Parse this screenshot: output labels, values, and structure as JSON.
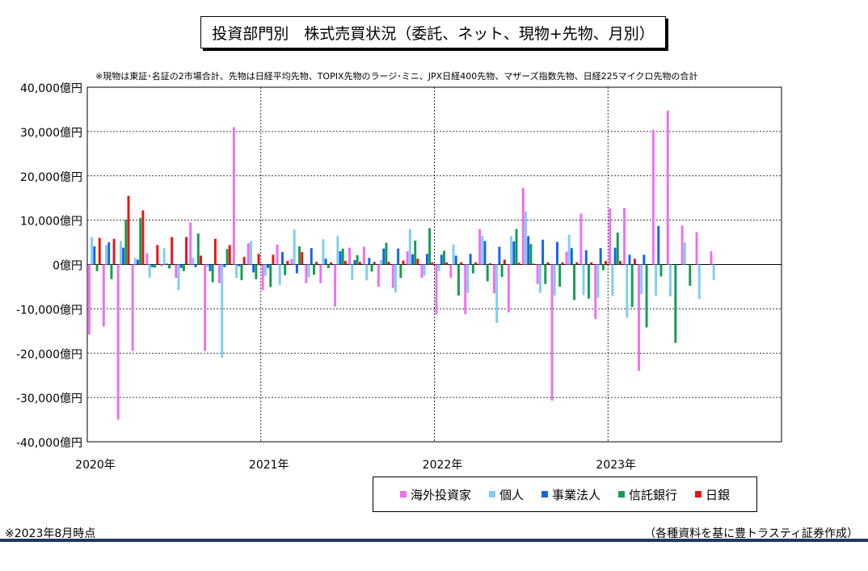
{
  "title": "投資部門別　株式売買状況（委託、ネット、現物+先物、月別）",
  "note": "※現物は東証･名証の2市場合計、先物は日経平均先物、TOPIX先物のラージ･ミニ、JPX日経400先物、マザーズ指数先物、日経225マイクロ先物の合計",
  "footnote": "※2023年8月時点",
  "source": "（各種資料を基に豊トラスティ証券作成）",
  "chart_data": {
    "type": "bar",
    "unit": "億円",
    "ylim": [
      -40000,
      40000
    ],
    "yticks": [
      40000,
      30000,
      20000,
      10000,
      0,
      -10000,
      -20000,
      -30000,
      -40000
    ],
    "ytick_labels": [
      "40,000億円",
      "30,000億円",
      "20,000億円",
      "10,000億円",
      "0億円",
      "-10,000億円",
      "-20,000億円",
      "-30,000億円",
      "-40,000億円"
    ],
    "year_labels": [
      "2020年",
      "2021年",
      "2022年",
      "2023年"
    ],
    "grid": true,
    "legend_position": "bottom",
    "categories": [
      "2020-01",
      "2020-02",
      "2020-03",
      "2020-04",
      "2020-05",
      "2020-06",
      "2020-07",
      "2020-08",
      "2020-09",
      "2020-10",
      "2020-11",
      "2020-12",
      "2021-01",
      "2021-02",
      "2021-03",
      "2021-04",
      "2021-05",
      "2021-06",
      "2021-07",
      "2021-08",
      "2021-09",
      "2021-10",
      "2021-11",
      "2021-12",
      "2022-01",
      "2022-02",
      "2022-03",
      "2022-04",
      "2022-05",
      "2022-06",
      "2022-07",
      "2022-08",
      "2022-09",
      "2022-10",
      "2022-11",
      "2022-12",
      "2023-01",
      "2023-02",
      "2023-03",
      "2023-04",
      "2023-05",
      "2023-06",
      "2023-07",
      "2023-08"
    ],
    "series": [
      {
        "name": "海外投資家",
        "color": "#f06ef0",
        "values": [
          -15800,
          -14000,
          -35000,
          -19500,
          2500,
          -400,
          -3000,
          9500,
          -19500,
          -4200,
          31000,
          4800,
          -5800,
          4500,
          1200,
          -4200,
          -4200,
          -9500,
          3800,
          4000,
          -5000,
          -5300,
          3000,
          -3000,
          -11300,
          -3000,
          -11200,
          8000,
          -6500,
          -10800,
          17300,
          -4400,
          -30700,
          2900,
          11500,
          -12300,
          12700,
          12700,
          -24000,
          30300,
          34700,
          8800,
          7300,
          3000
        ]
      },
      {
        "name": "個人",
        "color": "#7fcdf4",
        "values": [
          6200,
          4400,
          5300,
          1500,
          -3000,
          3700,
          -5800,
          1500,
          -500,
          -21000,
          -3000,
          5300,
          -2600,
          -4600,
          7900,
          -2900,
          5700,
          6400,
          -3500,
          -3600,
          1000,
          -6300,
          8000,
          -2500,
          -1500,
          4500,
          -6400,
          6500,
          -13200,
          6400,
          12000,
          -6400,
          -7000,
          6700,
          -6900,
          -7500,
          -7100,
          -12000,
          -6700,
          -7000,
          -7200,
          5000,
          -7800,
          -3500
        ]
      },
      {
        "name": "事業法人",
        "color": "#1664e6",
        "values": [
          4100,
          5000,
          3800,
          1100,
          -600,
          200,
          -800,
          -600,
          -1500,
          -600,
          -400,
          -1800,
          -800,
          2800,
          -2000,
          3700,
          1300,
          3000,
          1000,
          1500,
          3600,
          3600,
          2300,
          2400,
          2200,
          2000,
          2400,
          5300,
          4000,
          5200,
          6400,
          5600,
          5100,
          3700,
          3200,
          3700,
          3800,
          2200,
          2200,
          8700,
          0,
          0,
          0,
          0
        ]
      },
      {
        "name": "信託銀行",
        "color": "#139d50",
        "values": [
          -1500,
          -3300,
          10100,
          10500,
          -700,
          -900,
          -1500,
          7000,
          -4000,
          3500,
          -3500,
          -3300,
          -5100,
          -2400,
          4100,
          -2300,
          -800,
          3600,
          2100,
          -1600,
          4900,
          -3000,
          5400,
          8200,
          3100,
          -7000,
          -2000,
          -3800,
          -2800,
          8000,
          4600,
          -4400,
          -5000,
          -8000,
          -7700,
          -1300,
          7200,
          -9600,
          -14200,
          -2700,
          -17700,
          -4800,
          0,
          0
        ]
      },
      {
        "name": "日銀",
        "color": "#ef1010",
        "values": [
          6000,
          5800,
          15500,
          12200,
          4400,
          6200,
          6200,
          2000,
          5800,
          4400,
          1700,
          2400,
          2200,
          800,
          2800,
          600,
          500,
          800,
          600,
          600,
          600,
          900,
          1300,
          500,
          500,
          500,
          500,
          300,
          1100,
          400,
          200,
          500,
          500,
          500,
          500,
          800,
          800,
          1300,
          0,
          0,
          0,
          0,
          0,
          0
        ]
      }
    ]
  }
}
